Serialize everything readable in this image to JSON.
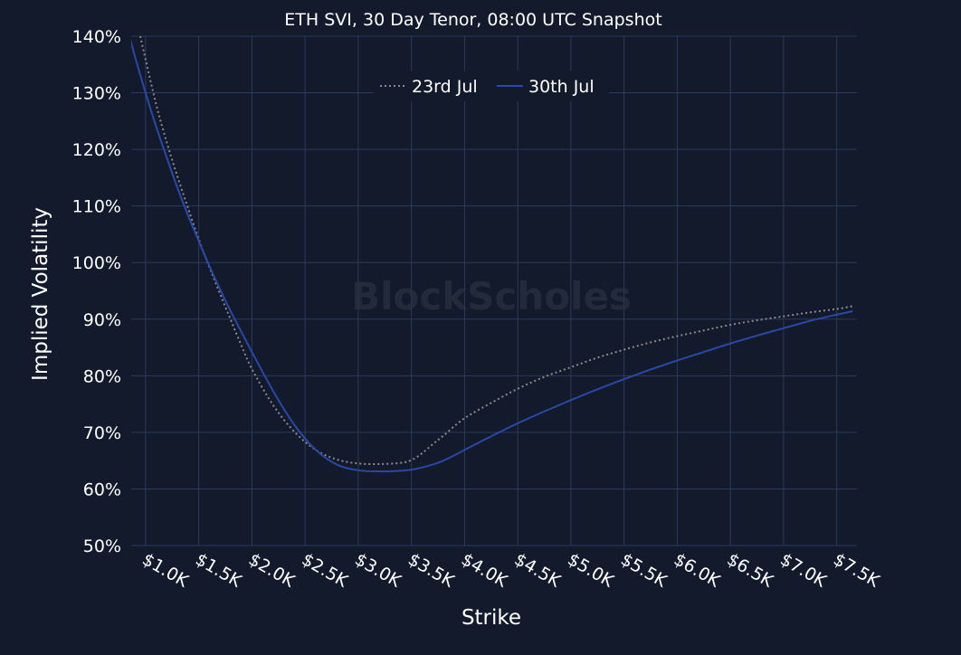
{
  "chart_data": {
    "type": "line",
    "title": "ETH SVI, 30 Day Tenor, 08:00 UTC Snapshot",
    "xlabel": "Strike",
    "ylabel": "Implied Volatility",
    "watermark": "BlockScholes",
    "x_ticks": [
      {
        "value": 1000,
        "label": "$1.0K"
      },
      {
        "value": 1500,
        "label": "$1.5K"
      },
      {
        "value": 2000,
        "label": "$2.0K"
      },
      {
        "value": 2500,
        "label": "$2.5K"
      },
      {
        "value": 3000,
        "label": "$3.0K"
      },
      {
        "value": 3500,
        "label": "$3.5K"
      },
      {
        "value": 4000,
        "label": "$4.0K"
      },
      {
        "value": 4500,
        "label": "$4.5K"
      },
      {
        "value": 5000,
        "label": "$5.0K"
      },
      {
        "value": 5500,
        "label": "$5.5K"
      },
      {
        "value": 6000,
        "label": "$6.0K"
      },
      {
        "value": 6500,
        "label": "$6.5K"
      },
      {
        "value": 7000,
        "label": "$7.0K"
      },
      {
        "value": 7500,
        "label": "$7.5K"
      }
    ],
    "y_ticks": [
      {
        "value": 50,
        "label": "50%"
      },
      {
        "value": 60,
        "label": "60%"
      },
      {
        "value": 70,
        "label": "70%"
      },
      {
        "value": 80,
        "label": "80%"
      },
      {
        "value": 90,
        "label": "90%"
      },
      {
        "value": 100,
        "label": "100%"
      },
      {
        "value": 110,
        "label": "110%"
      },
      {
        "value": 120,
        "label": "120%"
      },
      {
        "value": 130,
        "label": "130%"
      },
      {
        "value": 140,
        "label": "140%"
      }
    ],
    "xlim": [
      865,
      7690
    ],
    "ylim": [
      50,
      140
    ],
    "grid": true,
    "legend_position": "top-center",
    "series": [
      {
        "name": "23rd Jul",
        "color": "#8a8a8a",
        "style": "dotted",
        "x": [
          950,
          1000,
          1100,
          1200,
          1300,
          1400,
          1500,
          1600,
          1700,
          1800,
          1900,
          2000,
          2200,
          2400,
          2600,
          2800,
          3000,
          3200,
          3400,
          3500,
          3600,
          3700,
          3800,
          4000,
          4250,
          4500,
          4750,
          5000,
          5250,
          5500,
          5750,
          6000,
          6250,
          6500,
          6750,
          7000,
          7250,
          7500,
          7650
        ],
        "y": [
          140.0,
          135.9,
          127.9,
          121.2,
          115.2,
          109.6,
          104.1,
          99.2,
          94.5,
          89.9,
          85.4,
          81.2,
          74.8,
          70.1,
          66.9,
          65.2,
          64.5,
          64.4,
          64.6,
          65.1,
          66.3,
          67.9,
          69.4,
          72.5,
          75.2,
          77.7,
          79.8,
          81.5,
          83.2,
          84.6,
          85.9,
          87.0,
          88.0,
          89.0,
          89.8,
          90.5,
          91.2,
          91.8,
          92.3
        ]
      },
      {
        "name": "30th Jul",
        "color": "#2948a8",
        "style": "solid",
        "x": [
          850,
          900,
          1000,
          1100,
          1200,
          1300,
          1400,
          1500,
          1600,
          1700,
          1800,
          1900,
          2000,
          2200,
          2400,
          2600,
          2800,
          3000,
          3200,
          3400,
          3500,
          3600,
          3700,
          3800,
          3900,
          4000,
          4250,
          4500,
          4750,
          5000,
          5250,
          5500,
          5750,
          6000,
          6250,
          6500,
          6750,
          7000,
          7250,
          7500,
          7650
        ],
        "y": [
          140.0,
          136.4,
          130.0,
          124.0,
          118.5,
          113.2,
          108.3,
          103.8,
          99.4,
          95.3,
          91.4,
          87.8,
          84.2,
          77.3,
          71.3,
          66.9,
          64.3,
          63.3,
          63.1,
          63.2,
          63.4,
          63.8,
          64.3,
          65.0,
          65.9,
          66.9,
          69.3,
          71.6,
          73.7,
          75.7,
          77.6,
          79.4,
          81.1,
          82.7,
          84.2,
          85.7,
          87.1,
          88.4,
          89.7,
          90.8,
          91.4
        ]
      }
    ]
  }
}
